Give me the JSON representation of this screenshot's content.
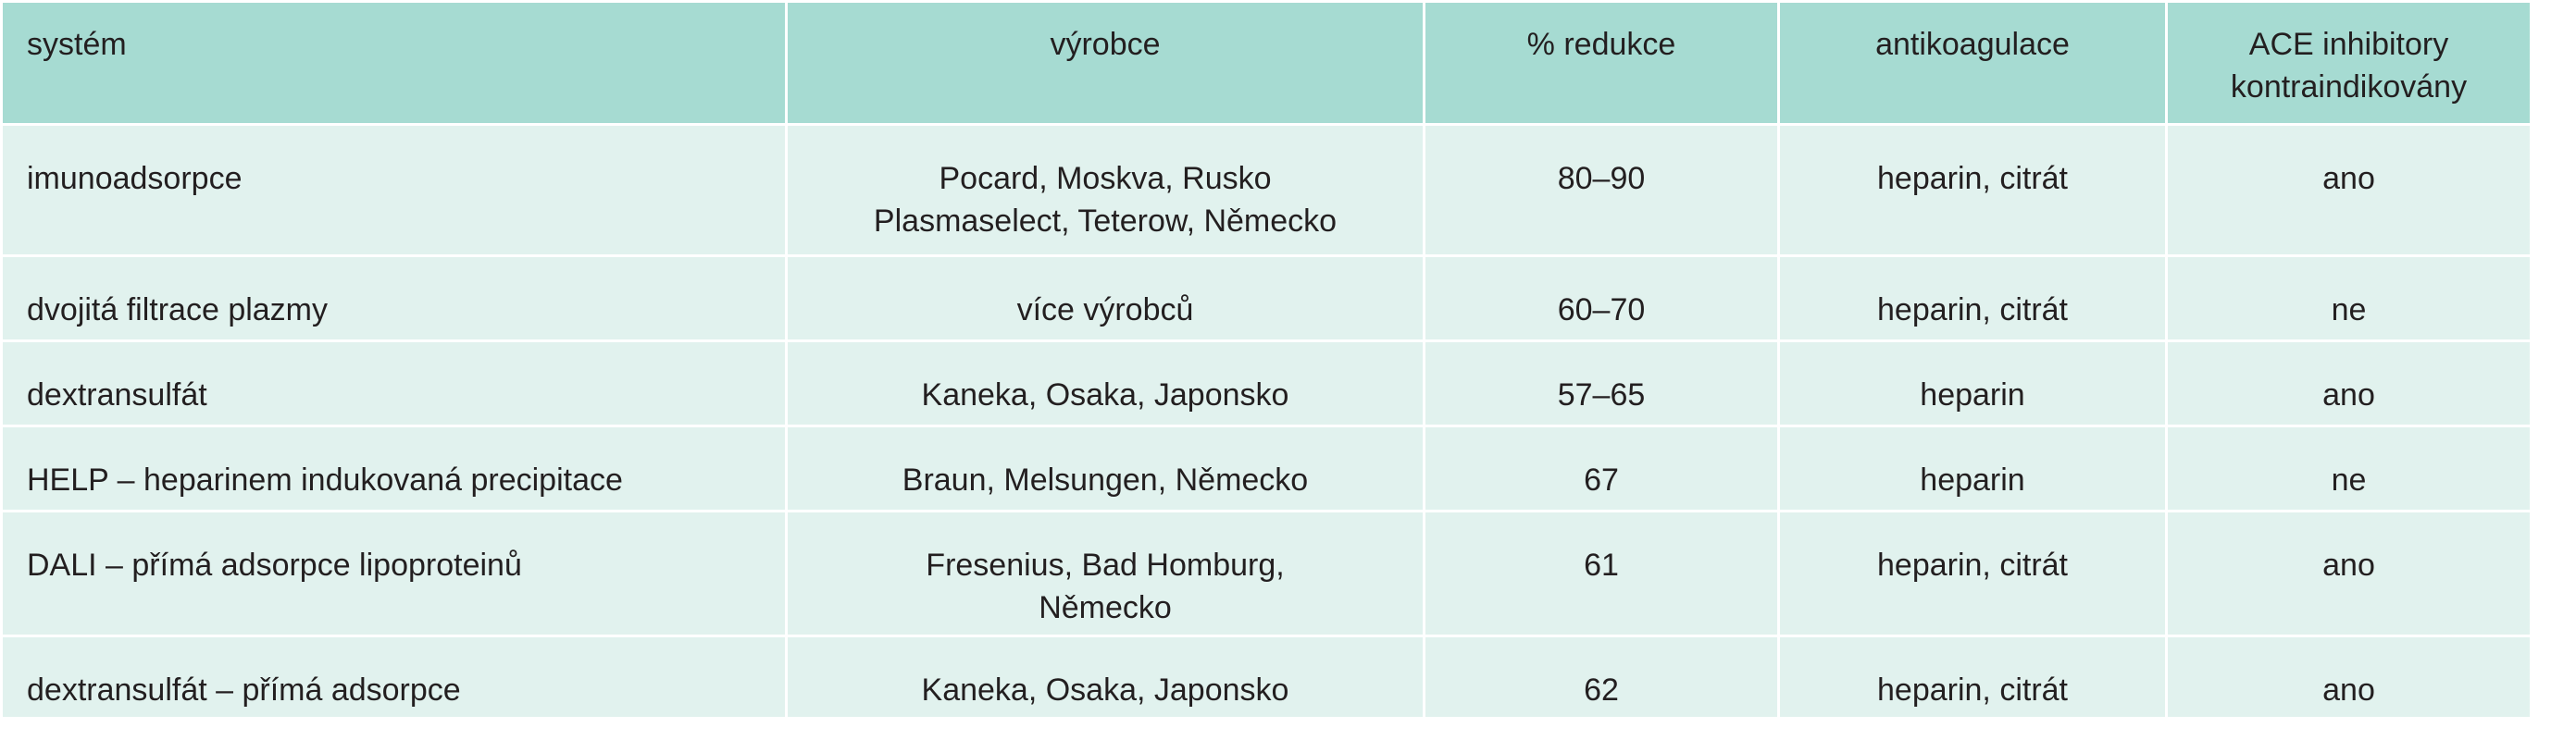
{
  "table": {
    "header": [
      "systém",
      "výrobce",
      "% redukce",
      "antikoagulace",
      "ACE inhibitory kontraindikovány"
    ],
    "rows": [
      [
        "imunoadsorpce",
        "Pocard, Moskva, Rusko\nPlasmaselect, Teterow, Německo",
        "80–90",
        "heparin, citrát",
        "ano"
      ],
      [
        "dvojitá filtrace plazmy",
        "více výrobců",
        "60–70",
        "heparin, citrát",
        "ne"
      ],
      [
        "dextransulfát",
        "Kaneka, Osaka, Japonsko",
        "57–65",
        "heparin",
        "ano"
      ],
      [
        "HELP – heparinem indukovaná precipitace",
        "Braun, Melsungen, Německo",
        "67",
        "heparin",
        "ne"
      ],
      [
        "DALI – přímá adsorpce lipoproteinů",
        "Fresenius, Bad Homburg,\nNěmecko",
        "61",
        "heparin, citrát",
        "ano"
      ],
      [
        "dextransulfát – přímá adsorpce",
        "Kaneka, Osaka, Japonsko",
        "62",
        "heparin, citrát",
        "ano"
      ]
    ]
  }
}
